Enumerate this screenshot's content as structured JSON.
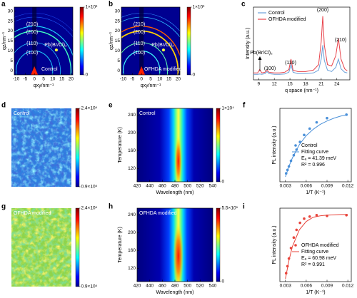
{
  "chart_data": [
    {
      "label": "a",
      "type": "heatmap",
      "colormap": "jet",
      "xlabel": "qxy/nm⁻¹",
      "ylabel": "qz/nm⁻¹",
      "xlim": [
        -11,
        21
      ],
      "xticks": [
        -10,
        -5,
        0,
        5,
        10,
        15,
        20
      ],
      "ylim": [
        -2,
        32
      ],
      "yticks": [
        0,
        5,
        10,
        15,
        20,
        25,
        30
      ],
      "clim": [
        0,
        1000
      ],
      "cticks": [
        0,
        {
          "value": 1000,
          "label": "1×10³"
        }
      ],
      "annotations": [
        "(210)",
        "(200)",
        "(110)",
        "(100)",
        "Pb(Br/Cl)₂",
        "Control"
      ]
    },
    {
      "label": "b",
      "type": "heatmap",
      "colormap": "jet",
      "xlabel": "qxy/nm⁻¹",
      "ylabel": "qz/nm⁻¹",
      "xlim": [
        -11,
        21
      ],
      "xticks": [
        -10,
        -5,
        0,
        5,
        10,
        15,
        20
      ],
      "ylim": [
        -2,
        32
      ],
      "yticks": [
        0,
        5,
        10,
        15,
        20,
        25,
        30
      ],
      "clim": [
        0,
        1000
      ],
      "cticks": [
        0,
        {
          "value": 1000,
          "label": "1×10³"
        }
      ],
      "annotations": [
        "(210)",
        "(200)",
        "(110)",
        "(100)",
        "Pb(Br/Cl)₂",
        "OFHDA modified"
      ]
    },
    {
      "label": "c",
      "type": "line",
      "xlabel": "q space (nm⁻¹)",
      "ylabel": "Intensity (a.u.)",
      "xlim": [
        8,
        26.5
      ],
      "xticks": [
        9,
        12,
        15,
        18,
        21,
        24
      ],
      "ylim": [
        0,
        105
      ],
      "x": [
        8,
        8.8,
        9.2,
        9.6,
        10.2,
        10.6,
        11,
        12,
        13,
        14,
        14.8,
        15.2,
        15.6,
        16.5,
        18,
        19.5,
        20.5,
        21,
        21.3,
        21.6,
        22.2,
        23,
        23.8,
        24.3,
        24.8,
        25.5,
        26
      ],
      "series": [
        {
          "name": "Control",
          "color": "#6a9fd8",
          "values": [
            8,
            8,
            8.5,
            8,
            9,
            12,
            9,
            8,
            8,
            8.5,
            11,
            22,
            11,
            9,
            9,
            10,
            14,
            30,
            50,
            28,
            14,
            12,
            18,
            30,
            16,
            11,
            10
          ]
        },
        {
          "name": "OFHDA modified",
          "color": "#e8434b",
          "values": [
            10,
            10,
            15,
            10,
            11,
            14,
            11,
            10,
            10,
            11,
            15,
            30,
            14,
            12,
            12,
            14,
            22,
            55,
            92,
            50,
            22,
            20,
            35,
            60,
            30,
            16,
            13
          ]
        }
      ],
      "annotations": [
        "(100)",
        "(110)",
        "(200)",
        "(210)",
        "Pb(Br/Cl)₂"
      ]
    },
    {
      "label": "d",
      "type": "heatmap",
      "colormap": "jet",
      "clim": [
        90000,
        240000
      ],
      "cticks": [
        {
          "value": 90000,
          "label": "0.9×10⁵"
        },
        {
          "value": 240000,
          "label": "2.4×10⁵"
        }
      ],
      "annotations": [
        "Control"
      ]
    },
    {
      "label": "e",
      "type": "heatmap",
      "colormap": "jet",
      "xlabel": "Wavelength (nm)",
      "ylabel": "Temperature (K)",
      "xlim": [
        420,
        540
      ],
      "xticks": [
        420,
        440,
        460,
        480,
        500,
        520,
        540
      ],
      "ylim": [
        90,
        255
      ],
      "yticks": [
        120,
        160,
        200,
        240
      ],
      "clim": [
        0,
        10000
      ],
      "cticks": [
        0,
        {
          "value": 10000,
          "label": "1×10⁴"
        }
      ],
      "annotations": [
        "Control"
      ]
    },
    {
      "label": "f",
      "type": "scatter",
      "xlabel": "1/T (K⁻¹)",
      "ylabel": "PL intensity (a.u.)",
      "xlim": [
        0.0022,
        0.0125
      ],
      "xticks": [
        0.003,
        0.006,
        0.009,
        0.012
      ],
      "ylim": [
        0,
        1.05
      ],
      "series": [
        {
          "name": "Control",
          "color": "#4a90d9",
          "mode": "markers",
          "x": [
            0.0031,
            0.0033,
            0.0035,
            0.0038,
            0.0042,
            0.0046,
            0.0051,
            0.0057,
            0.0065,
            0.0075,
            0.009,
            0.0118
          ],
          "values": [
            0.12,
            0.17,
            0.22,
            0.3,
            0.38,
            0.46,
            0.57,
            0.67,
            0.76,
            0.85,
            0.91,
            0.96
          ]
        },
        {
          "name": "Fitting curve",
          "color": "#4a90d9",
          "mode": "line",
          "x": [
            0.003,
            0.0035,
            0.004,
            0.005,
            0.006,
            0.007,
            0.008,
            0.009,
            0.01,
            0.011,
            0.012
          ],
          "values": [
            0.07,
            0.22,
            0.34,
            0.53,
            0.66,
            0.75,
            0.82,
            0.87,
            0.91,
            0.94,
            0.96
          ]
        }
      ],
      "annotations": [
        "Eₐ = 41.39 meV",
        "R² = 0.996"
      ]
    },
    {
      "label": "g",
      "type": "heatmap",
      "colormap": "jet",
      "clim": [
        90000,
        240000
      ],
      "cticks": [
        {
          "value": 90000,
          "label": "0.9×10⁵"
        },
        {
          "value": 240000,
          "label": "2.4×10⁵"
        }
      ],
      "annotations": [
        "OFHDA modified"
      ]
    },
    {
      "label": "h",
      "type": "heatmap",
      "colormap": "jet",
      "xlabel": "Wavelength (nm)",
      "ylabel": "Temperature (K)",
      "xlim": [
        420,
        540
      ],
      "xticks": [
        420,
        440,
        460,
        480,
        500,
        520,
        540
      ],
      "ylim": [
        90,
        255
      ],
      "yticks": [
        120,
        160,
        200,
        240
      ],
      "clim": [
        0,
        550000
      ],
      "cticks": [
        0,
        {
          "value": 550000,
          "label": "5.5×10⁵"
        }
      ],
      "annotations": [
        "OFHDA modified"
      ]
    },
    {
      "label": "i",
      "type": "scatter",
      "xlabel": "1/T (K⁻¹)",
      "ylabel": "PL intensity (a.u.)",
      "xlim": [
        0.0022,
        0.0125
      ],
      "xticks": [
        0.003,
        0.006,
        0.009,
        0.012
      ],
      "ylim": [
        0,
        1.05
      ],
      "series": [
        {
          "name": "OFHDA modified",
          "color": "#e8453c",
          "mode": "markers",
          "x": [
            0.0031,
            0.0033,
            0.0035,
            0.0038,
            0.0042,
            0.0046,
            0.0051,
            0.0057,
            0.0065,
            0.0075,
            0.009,
            0.0118
          ],
          "values": [
            0.12,
            0.22,
            0.33,
            0.48,
            0.63,
            0.74,
            0.84,
            0.9,
            0.93,
            0.95,
            0.94,
            0.95
          ]
        },
        {
          "name": "Fitting curve",
          "color": "#e8453c",
          "mode": "line",
          "x": [
            0.003,
            0.0035,
            0.004,
            0.005,
            0.006,
            0.007,
            0.008,
            0.009,
            0.01,
            0.011,
            0.012
          ],
          "values": [
            0.04,
            0.3,
            0.5,
            0.74,
            0.86,
            0.92,
            0.94,
            0.95,
            0.955,
            0.96,
            0.96
          ]
        }
      ],
      "annotations": [
        "Eₐ = 60.98 meV",
        "R² = 0.991"
      ]
    }
  ]
}
